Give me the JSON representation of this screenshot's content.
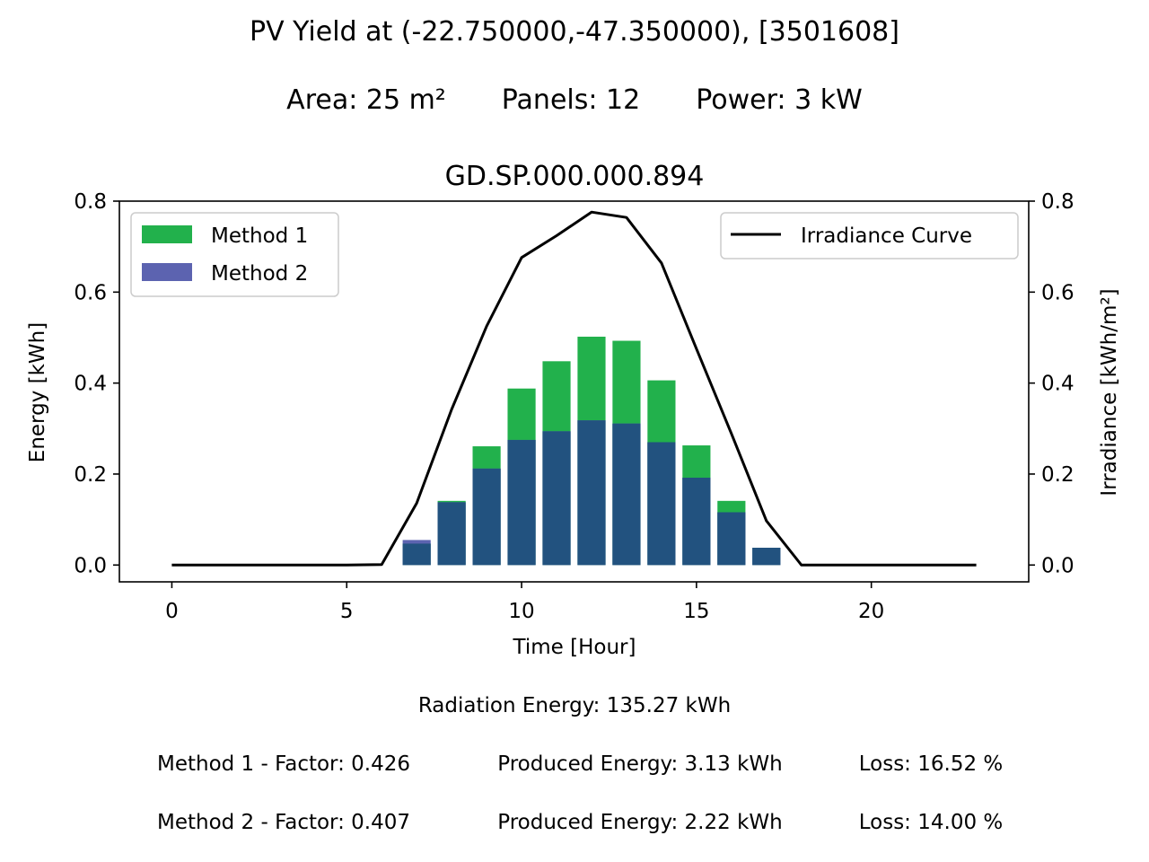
{
  "header": {
    "title": "PV Yield at (-22.750000,-47.350000), [3501608]",
    "specs": {
      "area": "Area: 25 m²",
      "panels": "Panels: 12",
      "power": "Power: 3 kW"
    },
    "subtitle": "GD.SP.000.000.894"
  },
  "footer": {
    "radiation": "Radiation Energy: 135.27 kWh",
    "method1": {
      "factor": "Method 1 - Factor: 0.426",
      "produced": "Produced Energy: 3.13 kWh",
      "loss": "Loss: 16.52 %"
    },
    "method2": {
      "factor": "Method 2 - Factor: 0.407",
      "produced": "Produced Energy: 2.22 kWh",
      "loss": "Loss: 14.00 %"
    }
  },
  "chart_data": {
    "type": "bar",
    "xlabel": "Time [Hour]",
    "ylabel": "Energy [kWh]",
    "ylabel_right": "Irradiance [kWh/m²]",
    "xlim": [
      -1.5,
      24.5
    ],
    "ylim": [
      -0.037,
      0.8
    ],
    "y2lim": [
      -0.037,
      0.8
    ],
    "xticks": [
      0,
      5,
      10,
      15,
      20
    ],
    "xtick_labels": [
      "0",
      "5",
      "10",
      "15",
      "20"
    ],
    "yticks": [
      0,
      0.2,
      0.4,
      0.6,
      0.8
    ],
    "ytick_labels": [
      "0.0",
      "0.2",
      "0.4",
      "0.6",
      "0.8"
    ],
    "y2ticks": [
      0,
      0.2,
      0.4,
      0.6,
      0.8
    ],
    "y2tick_labels": [
      "0.0",
      "0.2",
      "0.4",
      "0.6",
      "0.8"
    ],
    "grid": false,
    "legend_left_position": "upper-left",
    "legend_right_position": "upper-right",
    "colors": {
      "method1": "#22b14c",
      "method2": "#5c63b0",
      "overlap": "#22527f",
      "irradiance": "#000000",
      "ylabel": "#22b14c"
    },
    "bar_series": [
      {
        "name": "Method 1",
        "x": [
          7,
          8,
          9,
          10,
          11,
          12,
          13,
          14,
          15,
          16,
          17
        ],
        "values": [
          0.047,
          0.141,
          0.261,
          0.388,
          0.448,
          0.502,
          0.493,
          0.406,
          0.263,
          0.141,
          0.038
        ]
      },
      {
        "name": "Method 2",
        "x": [
          7,
          8,
          9,
          10,
          11,
          12,
          13,
          14,
          15,
          16,
          17
        ],
        "values": [
          0.055,
          0.138,
          0.212,
          0.275,
          0.294,
          0.318,
          0.311,
          0.27,
          0.192,
          0.116,
          0.038
        ]
      }
    ],
    "line_series": [
      {
        "name": "Irradiance Curve",
        "x": [
          0,
          1,
          2,
          3,
          4,
          5,
          6,
          7,
          8,
          9,
          10,
          11,
          12,
          13,
          14,
          15,
          16,
          17,
          18,
          19,
          20,
          21,
          22,
          23
        ],
        "values": [
          0,
          0,
          0,
          0,
          0,
          0,
          0.001,
          0.136,
          0.342,
          0.525,
          0.676,
          0.724,
          0.776,
          0.764,
          0.664,
          0.475,
          0.289,
          0.097,
          0,
          0,
          0,
          0,
          0,
          0
        ]
      }
    ]
  }
}
